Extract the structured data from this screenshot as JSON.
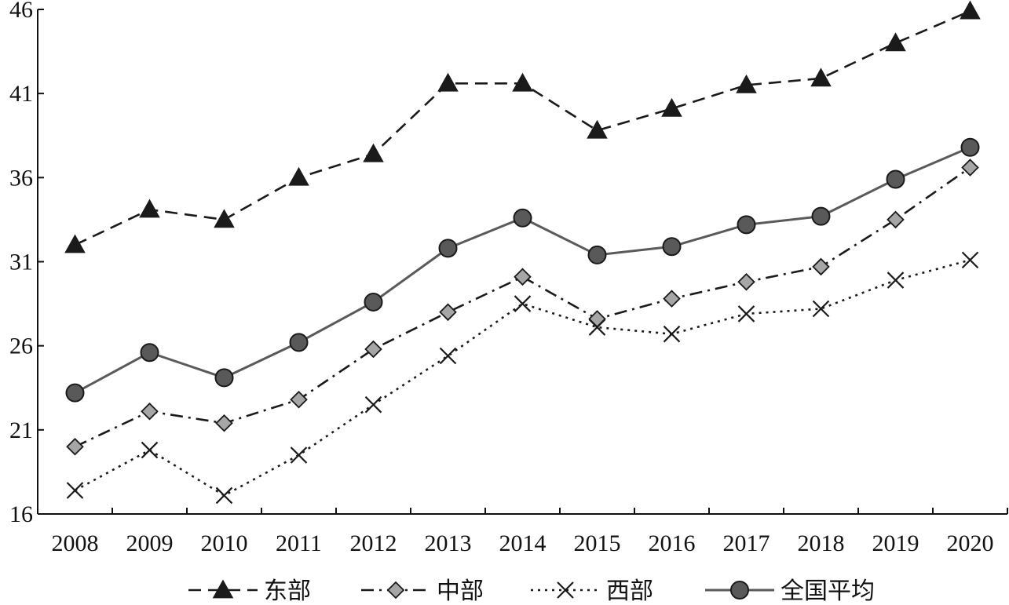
{
  "chart_data": {
    "type": "line",
    "title": "",
    "xlabel": "",
    "ylabel": "",
    "ylim": [
      16,
      46
    ],
    "yticks": [
      16,
      21,
      26,
      31,
      36,
      41,
      46
    ],
    "categories": [
      "2008",
      "2009",
      "2010",
      "2011",
      "2012",
      "2013",
      "2014",
      "2015",
      "2016",
      "2017",
      "2018",
      "2019",
      "2020"
    ],
    "grid": false,
    "legend_position": "bottom",
    "series": [
      {
        "name": "东部",
        "marker": "triangle",
        "line_style": "dashed",
        "color": "#1a1a1a",
        "marker_fill": "#1a1a1a",
        "values": [
          32.0,
          34.1,
          33.5,
          36.0,
          37.4,
          41.6,
          41.6,
          38.8,
          40.1,
          41.5,
          41.9,
          44.0,
          45.9
        ]
      },
      {
        "name": "中部",
        "marker": "diamond",
        "line_style": "dashdot",
        "color": "#1a1a1a",
        "marker_fill": "#a6a6a6",
        "values": [
          20.0,
          22.1,
          21.4,
          22.8,
          25.8,
          28.0,
          30.1,
          27.6,
          28.8,
          29.8,
          30.7,
          33.5,
          36.6
        ]
      },
      {
        "name": "西部",
        "marker": "x",
        "line_style": "dotted",
        "color": "#1a1a1a",
        "marker_fill": "#1a1a1a",
        "values": [
          17.4,
          19.8,
          17.1,
          19.5,
          22.5,
          25.4,
          28.5,
          27.1,
          26.7,
          27.9,
          28.2,
          29.9,
          31.1
        ]
      },
      {
        "name": "全国平均",
        "marker": "circle",
        "line_style": "solid",
        "color": "#5a5a5a",
        "marker_fill": "#595959",
        "values": [
          23.2,
          25.6,
          24.1,
          26.2,
          28.6,
          31.8,
          33.6,
          31.4,
          31.9,
          33.2,
          33.7,
          35.9,
          37.8
        ]
      }
    ]
  }
}
